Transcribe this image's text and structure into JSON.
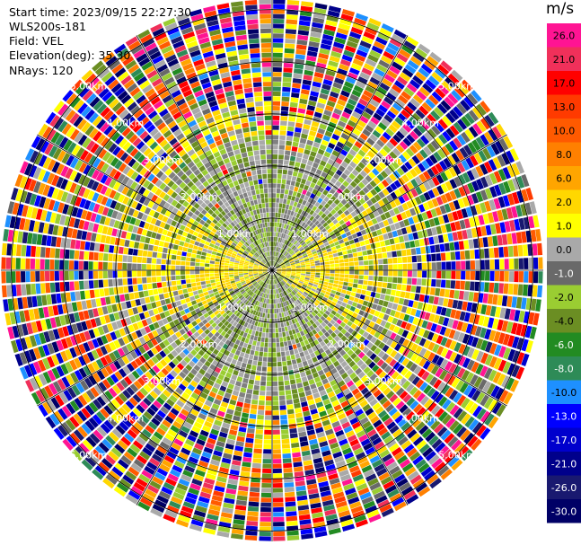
{
  "info": {
    "start_time": "Start time: 2023/09/15 22:27:30",
    "instrument": "WLS200s-181",
    "field": "Field: VEL",
    "elevation": "Elevation(deg): 35.30",
    "nrays": "NRays: 120"
  },
  "colorbar": {
    "unit": "m/s",
    "ticks": [
      "26.0",
      "21.0",
      "17.0",
      "13.0",
      "10.0",
      "8.0",
      "6.0",
      "2.0",
      "1.0",
      "0.0",
      "-1.0",
      "-2.0",
      "-4.0",
      "-6.0",
      "-8.0",
      "-10.0",
      "-13.0",
      "-17.0",
      "-21.0",
      "-26.0",
      "-30.0"
    ],
    "colors": [
      "#ff1493",
      "#f0305a",
      "#ff0000",
      "#ff3a00",
      "#ff5a00",
      "#ff8000",
      "#ffa500",
      "#ffd700",
      "#ffff00",
      "#a9a9a9",
      "#696969",
      "#9acd32",
      "#6b8e23",
      "#228b22",
      "#2e8b57",
      "#1e90ff",
      "#0000ff",
      "#0000cd",
      "#00008b",
      "#191970",
      "#000066"
    ]
  },
  "chart_data": {
    "type": "ppi",
    "field": "VEL",
    "units": "m/s",
    "nrays": 120,
    "elevation_deg": 35.3,
    "range_rings_km": [
      1,
      2,
      3,
      4,
      5
    ],
    "ring_labels": [
      "1.00km",
      "2.00km",
      "3.00km",
      "4.00km",
      "5.00km"
    ],
    "max_range_km": 5.2,
    "color_levels": [
      -30,
      -26,
      -21,
      -17,
      -13,
      -10,
      -8,
      -6,
      -4,
      -2,
      -1,
      0,
      1,
      2,
      6,
      8,
      10,
      13,
      17,
      21,
      26
    ]
  }
}
